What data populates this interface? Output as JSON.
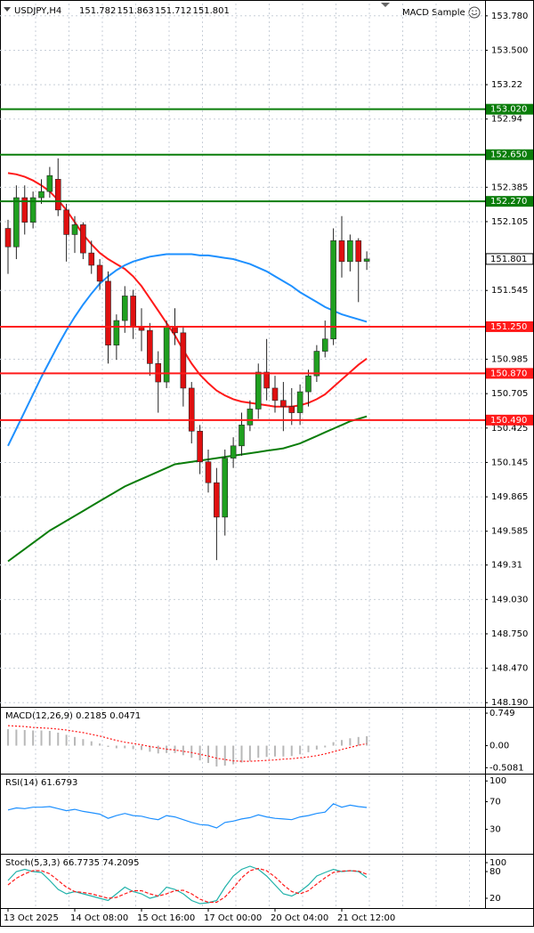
{
  "chart_data": [
    {
      "type": "candlestick",
      "title": "USDJPY,H4",
      "ohlc_header": [
        151.782,
        151.863,
        151.712,
        151.801
      ],
      "annotation": "MACD Sample",
      "categories": [
        "13 Oct 2025",
        null,
        null,
        null,
        null,
        null,
        null,
        null,
        "14 Oct 08:00",
        null,
        null,
        null,
        null,
        null,
        null,
        null,
        "15 Oct 16:00",
        null,
        null,
        null,
        null,
        null,
        null,
        null,
        "17 Oct 00:00",
        null,
        null,
        null,
        null,
        null,
        null,
        null,
        "20 Oct 04:00",
        null,
        null,
        null,
        null,
        null,
        null,
        null,
        "21 Oct 12:00",
        null,
        null,
        null
      ],
      "open": [
        152.05,
        151.9,
        152.3,
        152.1,
        152.3,
        152.35,
        152.45,
        152.2,
        152.0,
        152.08,
        151.85,
        151.75,
        151.62,
        151.1,
        151.3,
        151.5,
        151.25,
        151.22,
        150.95,
        150.8,
        151.25,
        151.2,
        150.75,
        150.4,
        150.15,
        149.98,
        149.7,
        150.18,
        150.28,
        150.45,
        150.58,
        150.88,
        150.75,
        150.65,
        150.6,
        150.55,
        150.72,
        150.85,
        151.05,
        151.15,
        151.95,
        151.78,
        151.95,
        151.782
      ],
      "high": [
        152.12,
        152.4,
        152.4,
        152.35,
        152.45,
        152.55,
        152.62,
        152.25,
        152.15,
        152.1,
        151.95,
        151.8,
        151.7,
        151.35,
        151.58,
        151.55,
        151.4,
        151.28,
        151.05,
        151.3,
        151.4,
        151.25,
        150.8,
        150.45,
        150.25,
        150.1,
        150.25,
        150.35,
        150.55,
        150.65,
        150.95,
        151.15,
        150.85,
        150.8,
        150.75,
        150.78,
        150.9,
        151.1,
        151.3,
        152.05,
        152.15,
        152.0,
        151.97,
        151.863
      ],
      "low": [
        151.68,
        151.8,
        152.0,
        152.05,
        152.25,
        152.3,
        152.15,
        151.78,
        151.85,
        151.8,
        151.68,
        151.55,
        150.95,
        150.98,
        151.2,
        151.15,
        151.05,
        150.85,
        150.55,
        150.75,
        151.1,
        150.6,
        150.3,
        150.05,
        149.9,
        149.35,
        149.55,
        150.1,
        150.2,
        150.4,
        150.5,
        150.65,
        150.55,
        150.4,
        150.45,
        150.45,
        150.6,
        150.8,
        151.0,
        151.1,
        151.65,
        151.7,
        151.45,
        151.712
      ],
      "close": [
        151.9,
        152.3,
        152.1,
        152.3,
        152.35,
        152.48,
        152.2,
        152.0,
        152.08,
        151.85,
        151.75,
        151.62,
        151.1,
        151.3,
        151.5,
        151.25,
        151.22,
        150.95,
        150.8,
        151.25,
        151.2,
        150.75,
        150.4,
        150.15,
        149.98,
        149.7,
        150.18,
        150.28,
        150.45,
        150.58,
        150.88,
        150.75,
        150.65,
        150.6,
        150.55,
        150.72,
        150.85,
        151.05,
        151.15,
        151.95,
        151.78,
        151.95,
        151.78,
        151.801
      ],
      "up_color": "#1fa01f",
      "down_color": "#e01010",
      "series": [
        {
          "color": "#ff1a1a",
          "values": [
            152.5,
            152.49,
            152.47,
            152.44,
            152.4,
            152.35,
            152.28,
            152.2,
            152.1,
            152.0,
            151.92,
            151.85,
            151.8,
            151.76,
            151.72,
            151.66,
            151.58,
            151.48,
            151.38,
            151.28,
            151.18,
            151.06,
            150.95,
            150.86,
            150.79,
            150.73,
            150.69,
            150.66,
            150.64,
            150.63,
            150.62,
            150.61,
            150.6,
            150.6,
            150.6,
            150.61,
            150.63,
            150.66,
            150.7,
            150.76,
            150.82,
            150.88,
            150.94,
            150.99
          ]
        },
        {
          "color": "#1e90ff",
          "values": [
            150.28,
            150.42,
            150.56,
            150.7,
            150.84,
            150.97,
            151.1,
            151.22,
            151.33,
            151.43,
            151.52,
            151.6,
            151.66,
            151.71,
            151.75,
            151.78,
            151.8,
            151.82,
            151.83,
            151.84,
            151.84,
            151.84,
            151.84,
            151.83,
            151.83,
            151.82,
            151.81,
            151.8,
            151.78,
            151.76,
            151.73,
            151.7,
            151.66,
            151.62,
            151.58,
            151.53,
            151.49,
            151.45,
            151.41,
            151.38,
            151.35,
            151.33,
            151.31,
            151.29
          ]
        },
        {
          "color": "#0a7d0a",
          "values": [
            149.34,
            149.39,
            149.44,
            149.49,
            149.54,
            149.59,
            149.63,
            149.67,
            149.71,
            149.75,
            149.79,
            149.83,
            149.87,
            149.91,
            149.95,
            149.98,
            150.01,
            150.04,
            150.07,
            150.1,
            150.13,
            150.14,
            150.15,
            150.16,
            150.17,
            150.18,
            150.19,
            150.2,
            150.21,
            150.22,
            150.23,
            150.24,
            150.25,
            150.26,
            150.28,
            150.3,
            150.33,
            150.36,
            150.39,
            150.42,
            150.45,
            150.48,
            150.5,
            150.52
          ]
        }
      ],
      "levels": [
        {
          "value": 153.02,
          "label": "153.020",
          "color": "#0a7d0a"
        },
        {
          "value": 152.65,
          "label": "152.650",
          "color": "#0a7d0a"
        },
        {
          "value": 152.27,
          "label": "152.270",
          "color": "#0a7d0a"
        },
        {
          "value": 151.25,
          "label": "151.250",
          "color": "#ff1a1a"
        },
        {
          "value": 150.87,
          "label": "150.870",
          "color": "#ff1a1a"
        },
        {
          "value": 150.49,
          "label": "150.490",
          "color": "#ff1a1a"
        }
      ],
      "last_price": 151.801,
      "ylim": [
        148.17,
        153.88
      ],
      "yticks": [
        {
          "value": 153.78,
          "label": "153.780"
        },
        {
          "value": 153.5,
          "label": "153.500"
        },
        153.22,
        152.94,
        152.385,
        152.105,
        151.545,
        150.985,
        150.705,
        150.425,
        150.145,
        149.865,
        149.585,
        149.31,
        {
          "value": 149.03,
          "label": "149.030"
        },
        {
          "value": 148.75,
          "label": "148.750"
        },
        {
          "value": 148.47,
          "label": "148.470"
        },
        {
          "value": 148.19,
          "label": "148.190"
        }
      ],
      "grid": true
    },
    {
      "type": "indicator",
      "title": "MACD(12,26,9) 0.2185 0.0471",
      "series": [
        {
          "style": "histogram",
          "color": "#b8b8b8",
          "values": [
            0.38,
            0.37,
            0.36,
            0.35,
            0.35,
            0.34,
            0.3,
            0.25,
            0.2,
            0.15,
            0.1,
            0.05,
            -0.03,
            -0.06,
            -0.06,
            -0.08,
            -0.1,
            -0.14,
            -0.18,
            -0.17,
            -0.17,
            -0.22,
            -0.28,
            -0.34,
            -0.4,
            -0.48,
            -0.46,
            -0.43,
            -0.39,
            -0.35,
            -0.28,
            -0.26,
            -0.25,
            -0.25,
            -0.24,
            -0.2,
            -0.15,
            -0.09,
            -0.04,
            0.08,
            0.13,
            0.17,
            0.2,
            0.2185
          ]
        },
        {
          "style": "dotted",
          "color": "#ff1a1a",
          "values": [
            0.46,
            0.45,
            0.44,
            0.42,
            0.41,
            0.4,
            0.38,
            0.36,
            0.33,
            0.3,
            0.26,
            0.22,
            0.17,
            0.12,
            0.08,
            0.05,
            0.02,
            -0.02,
            -0.05,
            -0.08,
            -0.1,
            -0.13,
            -0.16,
            -0.2,
            -0.24,
            -0.29,
            -0.32,
            -0.35,
            -0.36,
            -0.36,
            -0.35,
            -0.34,
            -0.33,
            -0.31,
            -0.3,
            -0.28,
            -0.26,
            -0.23,
            -0.19,
            -0.14,
            -0.09,
            -0.04,
            0.01,
            0.0471
          ]
        }
      ],
      "ylim": [
        -0.625,
        0.853
      ],
      "yticks": [
        0.749,
        {
          "value": 0,
          "label": "0.00"
        },
        -0.5081
      ]
    },
    {
      "type": "indicator",
      "title": "RSI(14) 61.6793",
      "series": [
        {
          "style": "line",
          "color": "#1e90ff",
          "values": [
            58,
            61,
            60,
            62,
            62,
            63,
            60,
            57,
            59,
            56,
            54,
            52,
            46,
            50,
            53,
            50,
            49,
            46,
            44,
            50,
            48,
            44,
            40,
            37,
            36,
            32,
            40,
            42,
            45,
            47,
            51,
            48,
            46,
            45,
            44,
            48,
            50,
            53,
            55,
            67,
            62,
            65,
            63,
            61.6793
          ]
        }
      ],
      "ylim": [
        -4,
        108
      ],
      "yticks": [
        100,
        70,
        30
      ]
    },
    {
      "type": "indicator",
      "title": "Stoch(5,3,3) 66.7735 74.2095",
      "series": [
        {
          "style": "line",
          "color": "#20b2aa",
          "values": [
            60,
            80,
            85,
            80,
            78,
            60,
            40,
            30,
            35,
            30,
            25,
            20,
            15,
            30,
            45,
            35,
            30,
            20,
            25,
            45,
            40,
            30,
            15,
            8,
            10,
            15,
            45,
            70,
            85,
            92,
            85,
            70,
            50,
            30,
            25,
            35,
            50,
            70,
            78,
            85,
            80,
            82,
            80,
            66.7735
          ]
        },
        {
          "style": "dashed",
          "color": "#ff1a1a",
          "values": [
            50,
            65,
            75,
            82,
            82,
            75,
            60,
            45,
            35,
            33,
            30,
            25,
            20,
            22,
            30,
            37,
            37,
            30,
            25,
            30,
            37,
            38,
            30,
            18,
            11,
            11,
            23,
            43,
            66,
            82,
            87,
            82,
            68,
            50,
            35,
            30,
            37,
            52,
            66,
            78,
            81,
            82,
            81,
            74.2095
          ]
        }
      ],
      "ylim": [
        -2,
        116
      ],
      "yticks": [
        100,
        80,
        20
      ]
    }
  ]
}
